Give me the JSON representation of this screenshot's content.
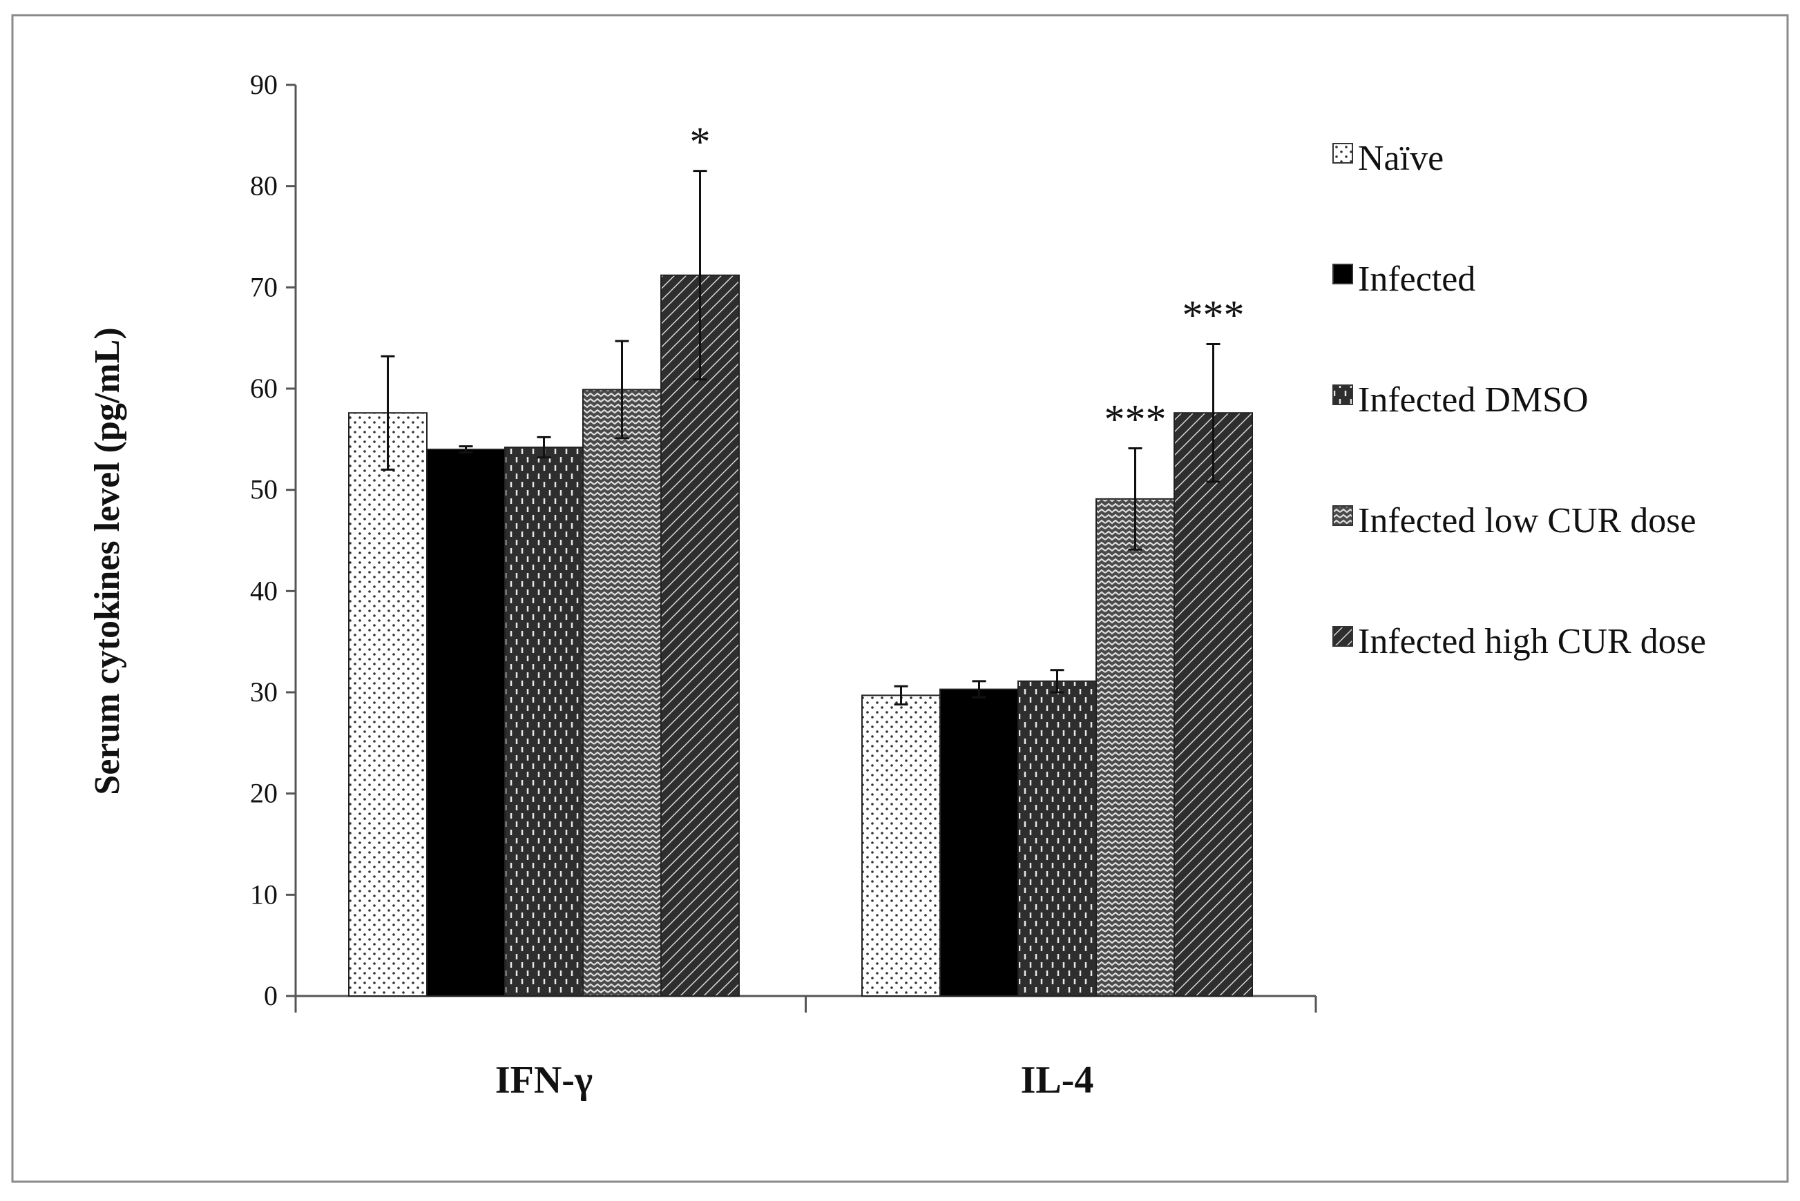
{
  "chart_data": {
    "type": "bar",
    "title": "",
    "xlabel": "",
    "ylabel": "Serum cytokines level (pg/mL)",
    "ylim": [
      0,
      90
    ],
    "yticks": [
      0,
      10,
      20,
      30,
      40,
      50,
      60,
      70,
      80,
      90
    ],
    "grid": false,
    "legend_position": "right",
    "categories": [
      "IFN-γ",
      "IL-4"
    ],
    "series": [
      {
        "name": "Naïve",
        "pattern": "dots",
        "values": [
          57.6,
          29.7
        ],
        "errors": [
          5.6,
          0.9
        ]
      },
      {
        "name": "Infected",
        "pattern": "solid",
        "values": [
          54.0,
          30.3
        ],
        "errors": [
          0.3,
          0.8
        ]
      },
      {
        "name": "Infected DMSO",
        "pattern": "dashes",
        "values": [
          54.2,
          31.1
        ],
        "errors": [
          1.0,
          1.1
        ]
      },
      {
        "name": "Infected low CUR dose",
        "pattern": "zigzag",
        "values": [
          59.9,
          49.1
        ],
        "errors": [
          4.8,
          5.0
        ]
      },
      {
        "name": "Infected high CUR dose",
        "pattern": "diagonal",
        "values": [
          71.2,
          57.6
        ],
        "errors": [
          10.3,
          6.8
        ]
      }
    ],
    "annotations": [
      {
        "category_index": 0,
        "series_index": 4,
        "text": "*"
      },
      {
        "category_index": 1,
        "series_index": 3,
        "text": "***"
      },
      {
        "category_index": 1,
        "series_index": 4,
        "text": "***"
      }
    ]
  },
  "colors": {
    "frame": "#8a8a8a",
    "axis": "#555555",
    "bar_dark": "#2b2b2b",
    "bar_solid": "#000000",
    "background": "#ffffff"
  }
}
